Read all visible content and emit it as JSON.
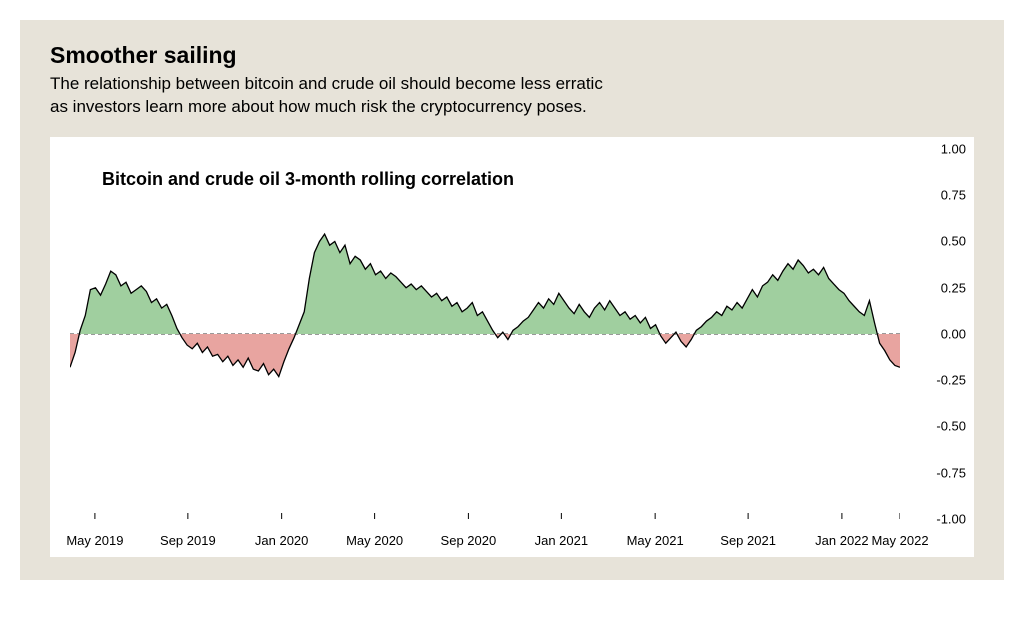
{
  "header": {
    "title": "Smoother sailing",
    "subtitle_line1": "The relationship between bitcoin and crude oil should become less erratic",
    "subtitle_line2": "as investors learn more about how much risk the cryptocurrency poses.",
    "title_fontsize": 23,
    "subtitle_fontsize": 17,
    "title_color": "#000000",
    "subtitle_color": "#000000"
  },
  "chart": {
    "type": "area",
    "inner_title": "Bitcoin and crude oil 3-month rolling correlation",
    "inner_title_fontsize": 18,
    "background_color": "#ffffff",
    "panel_bg": "#e7e3d9",
    "positive_fill": "#a0cf9f",
    "negative_fill": "#e8a4a0",
    "line_color": "#000000",
    "line_width": 1.3,
    "zero_line_color": "#333333",
    "zero_line_dash": "4 3",
    "ylim": [
      -1.0,
      1.0
    ],
    "ytick_step": 0.25,
    "yticks": [
      1.0,
      0.75,
      0.5,
      0.25,
      0.0,
      -0.25,
      -0.5,
      -0.75,
      -1.0
    ],
    "ytick_labels": [
      "1.00",
      "0.75",
      "0.50",
      "0.25",
      "0.00",
      "-0.25",
      "-0.50",
      "-0.75",
      "-1.00"
    ],
    "xtick_positions": [
      0.03,
      0.142,
      0.255,
      0.367,
      0.48,
      0.592,
      0.705,
      0.817,
      0.93,
      1.0
    ],
    "xtick_labels": [
      "May 2019",
      "Sep 2019",
      "Jan 2020",
      "May 2020",
      "Sep 2020",
      "Jan 2021",
      "May 2021",
      "Sep 2021",
      "Jan 2022",
      "May 2022"
    ],
    "label_fontsize": 13,
    "values": [
      -0.18,
      -0.1,
      0.02,
      0.1,
      0.24,
      0.25,
      0.21,
      0.27,
      0.34,
      0.32,
      0.26,
      0.28,
      0.22,
      0.24,
      0.26,
      0.23,
      0.17,
      0.19,
      0.14,
      0.16,
      0.1,
      0.03,
      -0.02,
      -0.06,
      -0.08,
      -0.05,
      -0.1,
      -0.07,
      -0.12,
      -0.11,
      -0.15,
      -0.12,
      -0.17,
      -0.14,
      -0.18,
      -0.13,
      -0.19,
      -0.2,
      -0.16,
      -0.22,
      -0.19,
      -0.23,
      -0.15,
      -0.08,
      -0.02,
      0.05,
      0.12,
      0.3,
      0.44,
      0.5,
      0.54,
      0.48,
      0.5,
      0.44,
      0.48,
      0.38,
      0.42,
      0.4,
      0.35,
      0.38,
      0.32,
      0.34,
      0.3,
      0.33,
      0.31,
      0.28,
      0.25,
      0.27,
      0.24,
      0.26,
      0.23,
      0.2,
      0.22,
      0.18,
      0.2,
      0.15,
      0.17,
      0.12,
      0.14,
      0.17,
      0.1,
      0.12,
      0.07,
      0.02,
      -0.02,
      0.01,
      -0.03,
      0.02,
      0.04,
      0.07,
      0.09,
      0.13,
      0.17,
      0.14,
      0.19,
      0.16,
      0.22,
      0.18,
      0.14,
      0.11,
      0.16,
      0.12,
      0.09,
      0.14,
      0.17,
      0.13,
      0.18,
      0.14,
      0.1,
      0.12,
      0.08,
      0.1,
      0.06,
      0.09,
      0.03,
      0.05,
      -0.01,
      -0.05,
      -0.02,
      0.01,
      -0.04,
      -0.07,
      -0.03,
      0.02,
      0.04,
      0.07,
      0.09,
      0.12,
      0.1,
      0.15,
      0.13,
      0.17,
      0.14,
      0.19,
      0.24,
      0.2,
      0.26,
      0.28,
      0.32,
      0.29,
      0.34,
      0.38,
      0.35,
      0.4,
      0.37,
      0.33,
      0.35,
      0.32,
      0.36,
      0.3,
      0.27,
      0.24,
      0.22,
      0.18,
      0.15,
      0.12,
      0.1,
      0.18,
      0.06,
      -0.05,
      -0.09,
      -0.14,
      -0.17,
      -0.18
    ]
  }
}
